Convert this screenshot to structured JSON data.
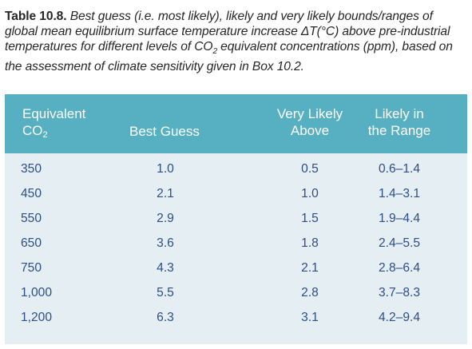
{
  "caption": {
    "label": "Table 10.8.",
    "text_part1": "Best guess (i.e. most likely), likely and very likely bounds/ranges of global mean equilibrium surface temperature increase ",
    "delta_symbol": "ΔT(°C)",
    "text_part2": " above pre-industrial temperatures for different levels of CO",
    "co2_subscript": "2",
    "text_part3": " equivalent concentrations (ppm), based on the assessment of climate sensitivity given in Box 10.2."
  },
  "table": {
    "headers": {
      "col1_line1": "Equivalent",
      "col1_line2_main": "CO",
      "col1_line2_sub": "2",
      "col2": "Best Guess",
      "col3_line1": "Very Likely",
      "col3_line2": "Above",
      "col4_line1": "Likely in",
      "col4_line2": "the Range"
    },
    "rows": [
      {
        "co2": "350",
        "best_guess": "1.0",
        "very_likely_above": "0.5",
        "likely_range": "0.6–1.4"
      },
      {
        "co2": "450",
        "best_guess": "2.1",
        "very_likely_above": "1.0",
        "likely_range": "1.4–3.1"
      },
      {
        "co2": "550",
        "best_guess": "2.9",
        "very_likely_above": "1.5",
        "likely_range": "1.9–4.4"
      },
      {
        "co2": "650",
        "best_guess": "3.6",
        "very_likely_above": "1.8",
        "likely_range": "2.4–5.5"
      },
      {
        "co2": "750",
        "best_guess": "4.3",
        "very_likely_above": "2.1",
        "likely_range": "2.8–6.4"
      },
      {
        "co2": "1,000",
        "best_guess": "5.5",
        "very_likely_above": "2.8",
        "likely_range": "3.7–8.3"
      },
      {
        "co2": "1,200",
        "best_guess": "6.3",
        "very_likely_above": "3.1",
        "likely_range": "4.2–9.4"
      }
    ]
  },
  "colors": {
    "header_background": "#56b0c1",
    "body_background": "#e5eef3",
    "body_text": "#2d4f86",
    "caption_text": "#262626"
  }
}
